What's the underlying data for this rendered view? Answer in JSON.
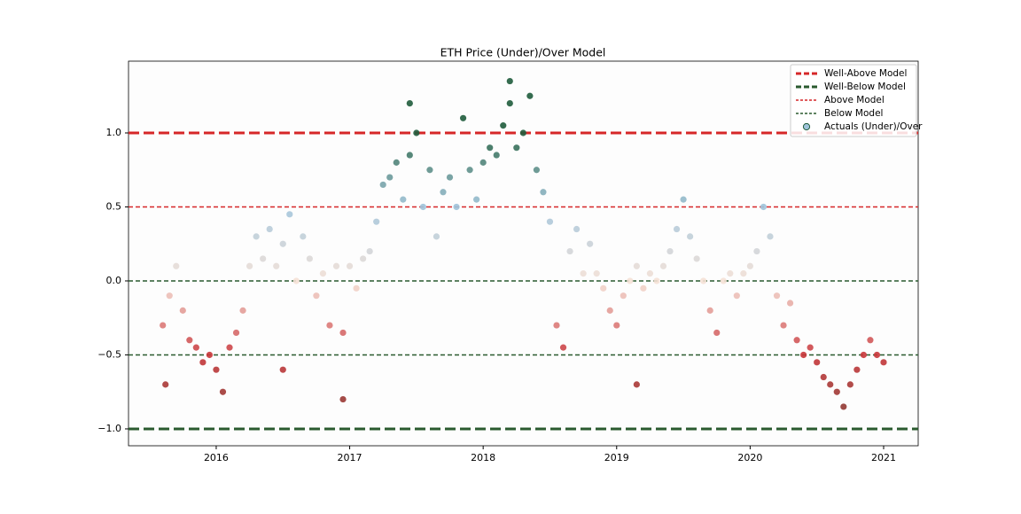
{
  "chart_data": {
    "type": "scatter",
    "title": "ETH Price (Under)/Over Model",
    "xlim": [
      2015.343,
      2021.259
    ],
    "xticks": [
      2016,
      2017,
      2018,
      2019,
      2020,
      2021
    ],
    "ylim": [
      -1.114,
      1.485
    ],
    "yticks": [
      {
        "value": -1,
        "label": "−1.0"
      },
      {
        "value": -0.5,
        "label": "−0.5"
      },
      {
        "value": 0,
        "label": "0.0"
      },
      {
        "value": 0.5,
        "label": "0.5"
      },
      {
        "value": 1,
        "label": "1.0"
      }
    ],
    "legend": "upper right",
    "hlines": [
      {
        "name": "Well-Above Model",
        "color": "#d62728",
        "linewidth": 3,
        "values": [
          1
        ]
      },
      {
        "name": "Well-Below Model",
        "color": "#2a5a2f",
        "linewidth": 3,
        "values": [
          -1
        ]
      },
      {
        "name": "Above Model",
        "color": "#d62728",
        "linewidth": 1.5,
        "values": [
          0.5
        ]
      },
      {
        "name": "Below Model",
        "color": "#2a5a2f",
        "linewidth": 1.5,
        "values": [
          0,
          -0.5
        ]
      }
    ],
    "colormap": [
      "#7b3a30",
      "#c9363a",
      "#f5e1d6",
      "#9fc3da",
      "#1f5c3c"
    ],
    "series": [
      {
        "name": "Actuals (Under)/Over",
        "x": [
          2015.6,
          2015.62,
          2015.65,
          2015.7,
          2015.75,
          2015.8,
          2015.85,
          2015.9,
          2015.95,
          2016.0,
          2016.05,
          2016.1,
          2016.15,
          2016.2,
          2016.25,
          2016.3,
          2016.35,
          2016.4,
          2016.45,
          2016.5,
          2016.5,
          2016.55,
          2016.6,
          2016.65,
          2016.7,
          2016.75,
          2016.8,
          2016.85,
          2016.9,
          2016.95,
          2016.95,
          2017.0,
          2017.05,
          2017.1,
          2017.15,
          2017.2,
          2017.25,
          2017.3,
          2017.35,
          2017.4,
          2017.45,
          2017.45,
          2017.5,
          2017.55,
          2017.6,
          2017.65,
          2017.7,
          2017.75,
          2017.8,
          2017.85,
          2017.9,
          2017.95,
          2018.0,
          2018.05,
          2018.1,
          2018.15,
          2018.2,
          2018.2,
          2018.25,
          2018.3,
          2018.35,
          2018.4,
          2018.45,
          2018.5,
          2018.55,
          2018.6,
          2018.65,
          2018.7,
          2018.75,
          2018.8,
          2018.85,
          2018.9,
          2018.95,
          2019.0,
          2019.05,
          2019.1,
          2019.15,
          2019.15,
          2019.2,
          2019.25,
          2019.3,
          2019.35,
          2019.4,
          2019.45,
          2019.5,
          2019.55,
          2019.6,
          2019.65,
          2019.7,
          2019.75,
          2019.8,
          2019.85,
          2019.9,
          2019.95,
          2020.0,
          2020.05,
          2020.1,
          2020.15,
          2020.2,
          2020.25,
          2020.3,
          2020.35,
          2020.4,
          2020.45,
          2020.5,
          2020.55,
          2020.6,
          2020.65,
          2020.7,
          2020.75,
          2020.8,
          2020.85,
          2020.9,
          2020.95,
          2021.0
        ],
        "values": [
          -0.3,
          -0.7,
          -0.1,
          0.1,
          -0.2,
          -0.4,
          -0.45,
          -0.55,
          -0.5,
          -0.6,
          -0.75,
          -0.45,
          -0.35,
          -0.2,
          0.1,
          0.3,
          0.15,
          0.35,
          0.1,
          0.25,
          -0.6,
          0.45,
          0.0,
          0.3,
          0.15,
          -0.1,
          0.05,
          -0.3,
          0.1,
          -0.35,
          -0.8,
          0.1,
          -0.05,
          0.15,
          0.2,
          0.4,
          0.65,
          0.7,
          0.8,
          0.55,
          0.85,
          1.2,
          1.0,
          0.5,
          0.75,
          0.3,
          0.6,
          0.7,
          0.5,
          1.1,
          0.75,
          0.55,
          0.8,
          0.9,
          0.85,
          1.05,
          1.2,
          1.35,
          0.9,
          1.0,
          1.25,
          0.75,
          0.6,
          0.4,
          -0.3,
          -0.45,
          0.2,
          0.35,
          0.05,
          0.25,
          0.05,
          -0.05,
          -0.2,
          -0.3,
          -0.1,
          0.0,
          0.1,
          -0.7,
          -0.05,
          0.05,
          0.0,
          0.1,
          0.2,
          0.35,
          0.55,
          0.3,
          0.15,
          0.0,
          -0.2,
          -0.35,
          0.0,
          0.05,
          -0.1,
          0.05,
          0.1,
          0.2,
          0.5,
          0.3,
          -0.1,
          -0.3,
          -0.15,
          -0.4,
          -0.5,
          -0.45,
          -0.55,
          -0.65,
          -0.7,
          -0.75,
          -0.85,
          -0.7,
          -0.6,
          -0.5,
          -0.4,
          -0.5,
          -0.55
        ]
      }
    ]
  }
}
